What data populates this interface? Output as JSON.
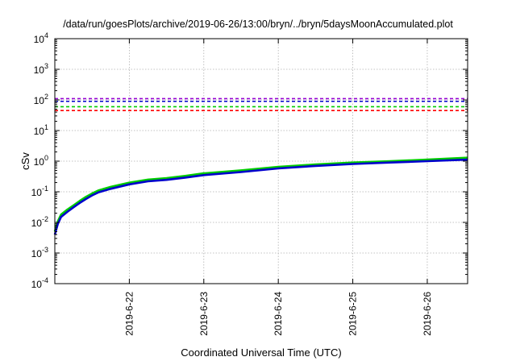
{
  "chart_data": {
    "type": "line",
    "title": "/data/run/goesPlots/archive/2019-06-26/13:00/bryn/../bryn/5daysMoonAccumulated.plot",
    "xlabel": "Coordinated Universal Time (UTC)",
    "ylabel": "cSv",
    "x_tick_labels": [
      "2019-6-22",
      "2019-6-23",
      "2019-6-24",
      "2019-6-25",
      "2019-6-26"
    ],
    "xlim": [
      "2019-06-21T00:00",
      "2019-06-26T13:00"
    ],
    "y_scale": "log",
    "ylim": [
      0.0001,
      10000
    ],
    "y_tick_labels": [
      {
        "base": "10",
        "exp": "-4"
      },
      {
        "base": "10",
        "exp": "-3"
      },
      {
        "base": "10",
        "exp": "-2"
      },
      {
        "base": "10",
        "exp": "-1"
      },
      {
        "base": "10",
        "exp": "0"
      },
      {
        "base": "10",
        "exp": "1"
      },
      {
        "base": "10",
        "exp": "2"
      },
      {
        "base": "10",
        "exp": "3"
      },
      {
        "base": "10",
        "exp": "4"
      }
    ],
    "grid": true,
    "reference_lines": [
      {
        "value": 110,
        "color": "#9400d3",
        "style": "dashed"
      },
      {
        "value": 90,
        "color": "#0000cc",
        "style": "dashed"
      },
      {
        "value": 60,
        "color": "#00cc00",
        "style": "dashed"
      },
      {
        "value": 45,
        "color": "#ff0000",
        "style": "dashed"
      }
    ],
    "series": [
      {
        "color": "#00cc00",
        "x": [
          "2019-06-21T00:00",
          "2019-06-21T01:00",
          "2019-06-21T02:00",
          "2019-06-21T04:00",
          "2019-06-21T06:00",
          "2019-06-21T08:00",
          "2019-06-21T10:00",
          "2019-06-21T12:00",
          "2019-06-21T14:00",
          "2019-06-21T18:00",
          "2019-06-22T00:00",
          "2019-06-22T06:00",
          "2019-06-22T12:00",
          "2019-06-22T18:00",
          "2019-06-23T00:00",
          "2019-06-23T12:00",
          "2019-06-24T00:00",
          "2019-06-24T12:00",
          "2019-06-25T00:00",
          "2019-06-25T12:00",
          "2019-06-26T00:00",
          "2019-06-26T13:00"
        ],
        "y": [
          0.005,
          0.011,
          0.018,
          0.026,
          0.036,
          0.05,
          0.068,
          0.088,
          0.11,
          0.145,
          0.2,
          0.25,
          0.28,
          0.33,
          0.4,
          0.5,
          0.65,
          0.78,
          0.9,
          1.0,
          1.12,
          1.3
        ]
      },
      {
        "color": "#0000cc",
        "x": [
          "2019-06-21T00:00",
          "2019-06-21T01:00",
          "2019-06-21T02:00",
          "2019-06-21T04:00",
          "2019-06-21T06:00",
          "2019-06-21T08:00",
          "2019-06-21T10:00",
          "2019-06-21T12:00",
          "2019-06-21T14:00",
          "2019-06-21T18:00",
          "2019-06-22T00:00",
          "2019-06-22T06:00",
          "2019-06-22T12:00",
          "2019-06-22T18:00",
          "2019-06-23T00:00",
          "2019-06-23T12:00",
          "2019-06-24T00:00",
          "2019-06-24T12:00",
          "2019-06-25T00:00",
          "2019-06-25T12:00",
          "2019-06-26T00:00",
          "2019-06-26T13:00"
        ],
        "y": [
          0.004,
          0.009,
          0.015,
          0.022,
          0.031,
          0.043,
          0.058,
          0.076,
          0.095,
          0.125,
          0.175,
          0.22,
          0.245,
          0.29,
          0.35,
          0.44,
          0.58,
          0.7,
          0.81,
          0.9,
          1.0,
          1.12
        ]
      }
    ]
  }
}
